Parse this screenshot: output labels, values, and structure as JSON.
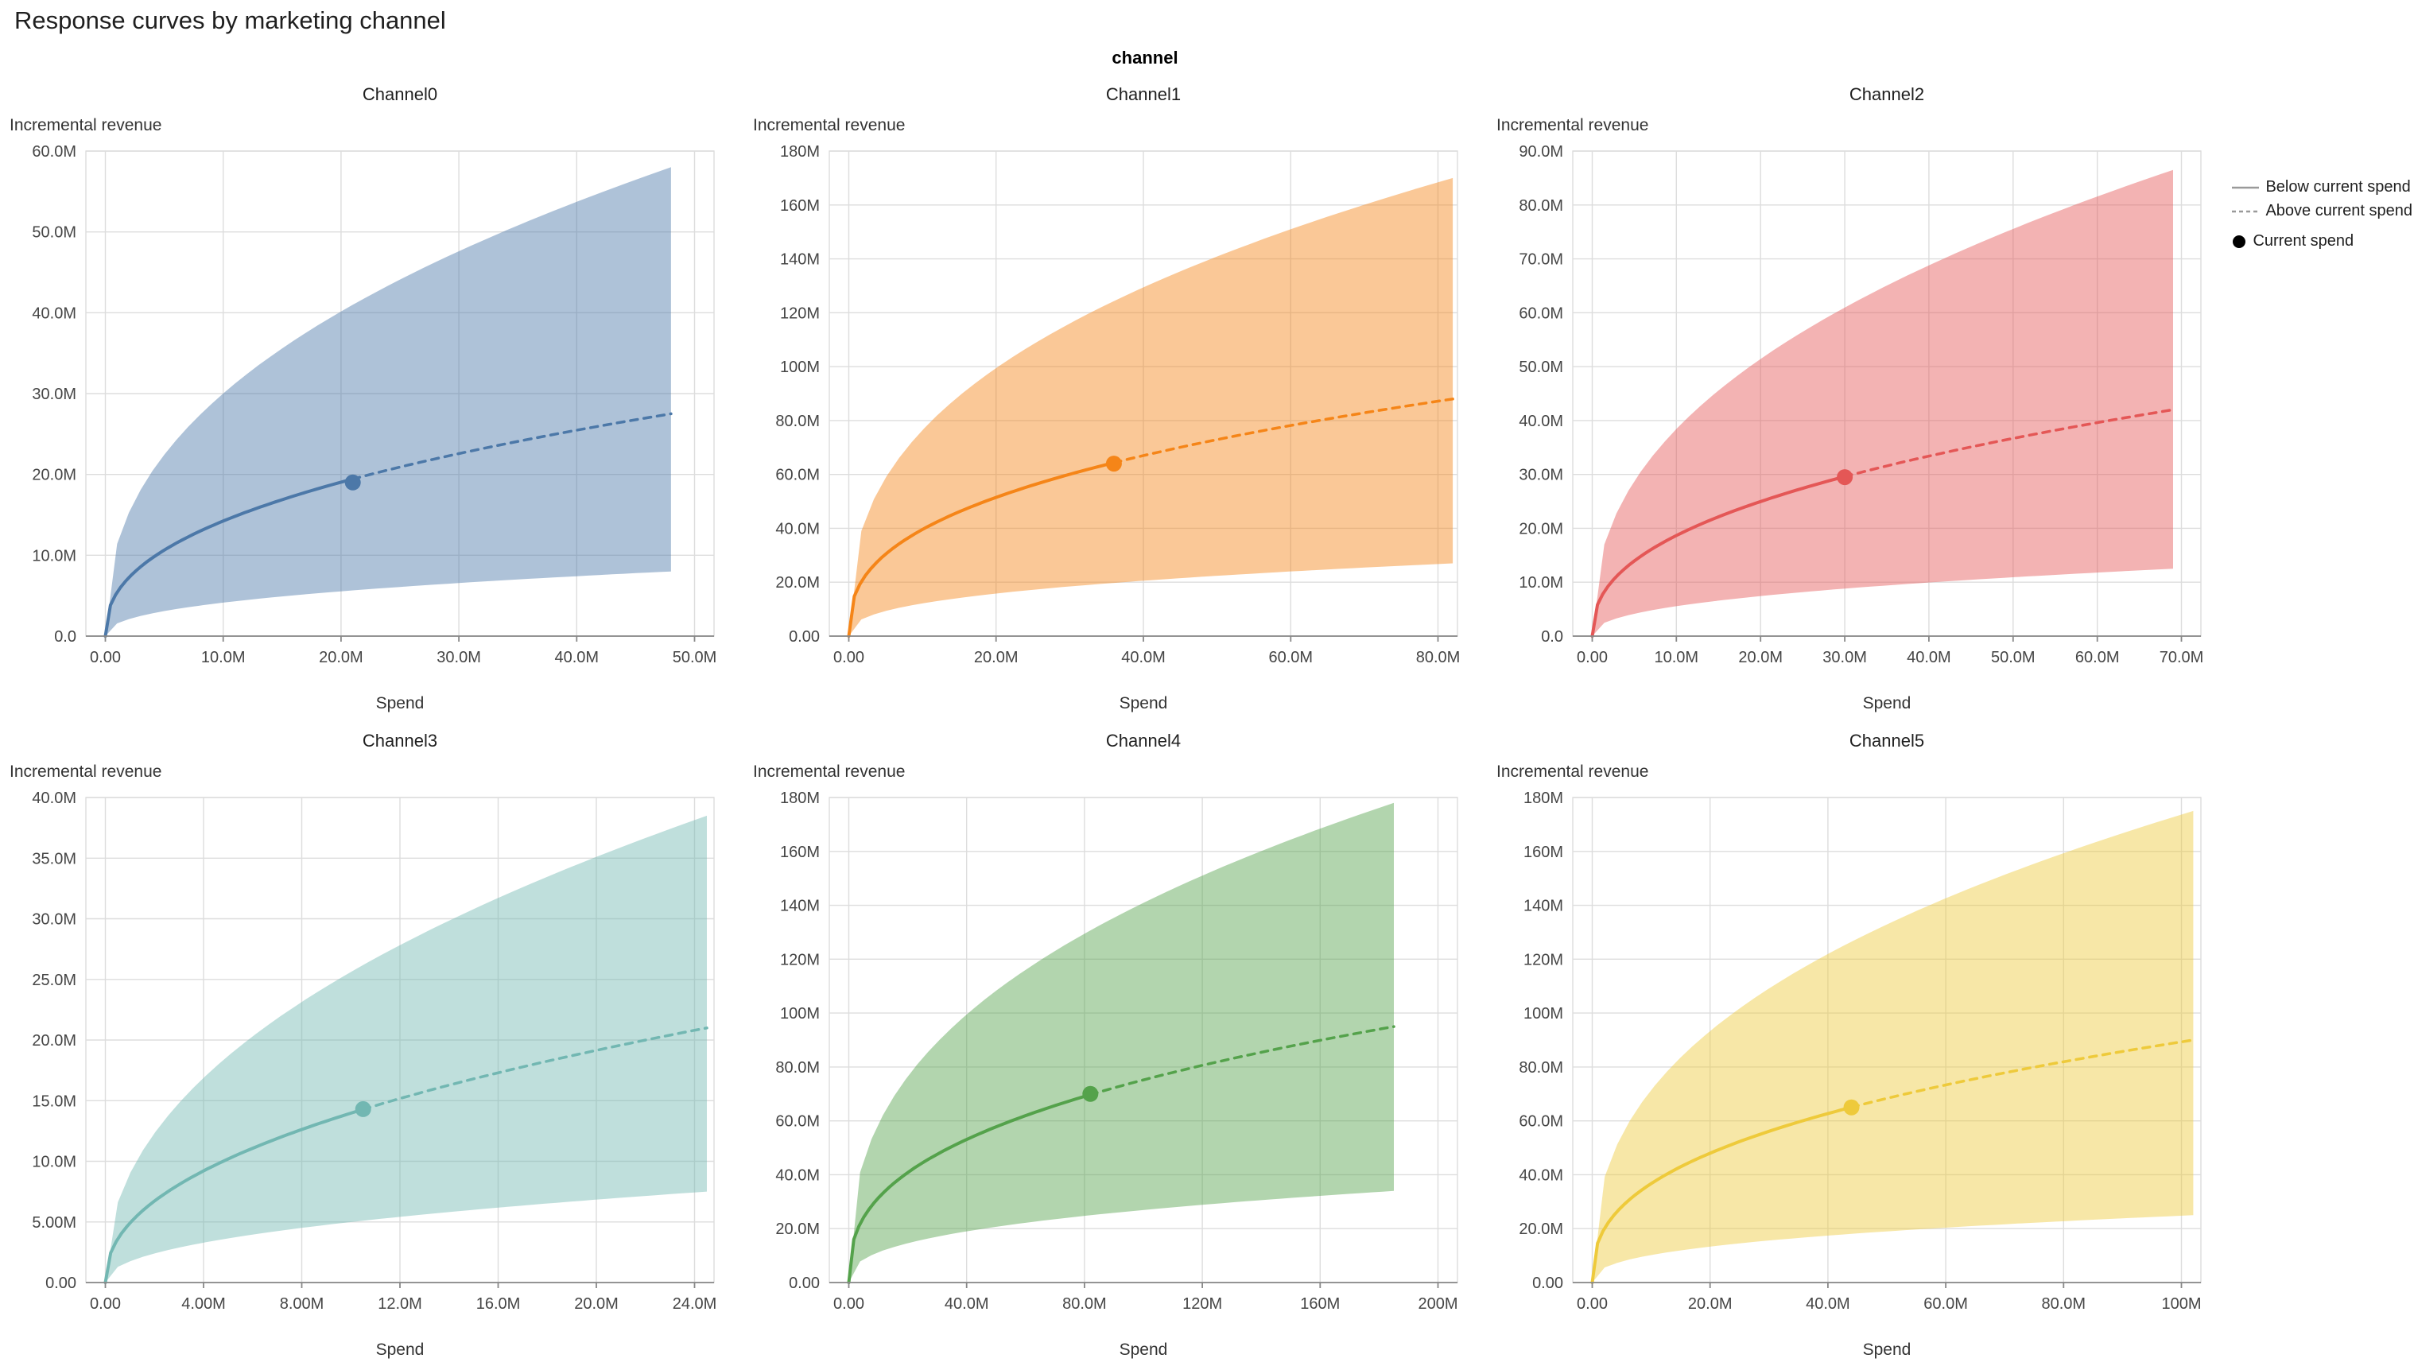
{
  "page": {
    "title": "Response curves by marketing channel",
    "facet_label": "channel"
  },
  "legend": {
    "position": "top-right",
    "items": [
      {
        "symbol": "solid-line",
        "label": "Below current spend"
      },
      {
        "symbol": "dashed-line",
        "label": "Above current spend"
      },
      {
        "symbol": "dot",
        "label": "Current spend"
      }
    ]
  },
  "layout": {
    "grid": true,
    "rows": 2,
    "cols": 3
  },
  "chart_data": [
    {
      "type": "line",
      "title": "Channel0",
      "xlabel": "Spend",
      "ylabel": "Incremental revenue",
      "color": "#4c78a8",
      "value_unit": "M",
      "x_axis_max": 50,
      "ylim": [
        0,
        60
      ],
      "xticks": [
        {
          "v": 0,
          "label": "0.00"
        },
        {
          "v": 10,
          "label": "10.0M"
        },
        {
          "v": 20,
          "label": "20.0M"
        },
        {
          "v": 30,
          "label": "30.0M"
        },
        {
          "v": 40,
          "label": "40.0M"
        },
        {
          "v": 50,
          "label": "50.0M"
        }
      ],
      "yticks": [
        {
          "v": 0,
          "label": "0.0"
        },
        {
          "v": 10,
          "label": "10.0M"
        },
        {
          "v": 20,
          "label": "20.0M"
        },
        {
          "v": 30,
          "label": "30.0M"
        },
        {
          "v": 40,
          "label": "40.0M"
        },
        {
          "v": 50,
          "label": "50.0M"
        },
        {
          "v": 60,
          "label": "60.0M"
        }
      ],
      "curve": {
        "x_end": 48,
        "exponent": 0.42,
        "median_end": 27.5,
        "upper_end": 58,
        "lower_end": 8
      },
      "median_points": {
        "x": [
          0,
          9.6,
          19.2,
          28.8,
          38.4,
          48
        ],
        "y": [
          0,
          14.0,
          18.7,
          22.2,
          25.1,
          27.5
        ]
      },
      "current_spend": {
        "x": 21,
        "y": 19
      }
    },
    {
      "type": "line",
      "title": "Channel1",
      "xlabel": "Spend",
      "ylabel": "Incremental revenue",
      "color": "#f58518",
      "value_unit": "M",
      "x_axis_max": 80,
      "ylim": [
        0,
        180
      ],
      "xticks": [
        {
          "v": 0,
          "label": "0.00"
        },
        {
          "v": 20,
          "label": "20.0M"
        },
        {
          "v": 40,
          "label": "40.0M"
        },
        {
          "v": 60,
          "label": "60.0M"
        },
        {
          "v": 80,
          "label": "80.0M"
        }
      ],
      "yticks": [
        {
          "v": 0,
          "label": "0.00"
        },
        {
          "v": 20,
          "label": "20.0M"
        },
        {
          "v": 40,
          "label": "40.0M"
        },
        {
          "v": 60,
          "label": "60.0M"
        },
        {
          "v": 80,
          "label": "80.0M"
        },
        {
          "v": 100,
          "label": "100M"
        },
        {
          "v": 120,
          "label": "120M"
        },
        {
          "v": 140,
          "label": "140M"
        },
        {
          "v": 160,
          "label": "160M"
        },
        {
          "v": 180,
          "label": "180M"
        }
      ],
      "curve": {
        "x_end": 82,
        "exponent": 0.38,
        "median_end": 88,
        "upper_end": 170,
        "lower_end": 27
      },
      "median_points": {
        "x": [
          0,
          16.4,
          32.8,
          49.2,
          65.6,
          82
        ],
        "y": [
          0,
          47.8,
          62.1,
          72.5,
          80.9,
          88
        ]
      },
      "current_spend": {
        "x": 36,
        "y": 64
      }
    },
    {
      "type": "line",
      "title": "Channel2",
      "xlabel": "Spend",
      "ylabel": "Incremental revenue",
      "color": "#e45756",
      "value_unit": "M",
      "x_axis_max": 70,
      "ylim": [
        0,
        90
      ],
      "xticks": [
        {
          "v": 0,
          "label": "0.00"
        },
        {
          "v": 10,
          "label": "10.0M"
        },
        {
          "v": 20,
          "label": "20.0M"
        },
        {
          "v": 30,
          "label": "30.0M"
        },
        {
          "v": 40,
          "label": "40.0M"
        },
        {
          "v": 50,
          "label": "50.0M"
        },
        {
          "v": 60,
          "label": "60.0M"
        },
        {
          "v": 70,
          "label": "70.0M"
        }
      ],
      "yticks": [
        {
          "v": 0,
          "label": "0.0"
        },
        {
          "v": 10,
          "label": "10.0M"
        },
        {
          "v": 20,
          "label": "20.0M"
        },
        {
          "v": 30,
          "label": "30.0M"
        },
        {
          "v": 40,
          "label": "40.0M"
        },
        {
          "v": 50,
          "label": "50.0M"
        },
        {
          "v": 60,
          "label": "60.0M"
        },
        {
          "v": 70,
          "label": "70.0M"
        },
        {
          "v": 80,
          "label": "80.0M"
        },
        {
          "v": 90,
          "label": "90.0M"
        }
      ],
      "curve": {
        "x_end": 69,
        "exponent": 0.42,
        "median_end": 42,
        "upper_end": 86.5,
        "lower_end": 12.5
      },
      "median_points": {
        "x": [
          0,
          13.8,
          27.6,
          41.4,
          55.2,
          69
        ],
        "y": [
          0,
          21.4,
          28.6,
          33.9,
          38.3,
          42
        ]
      },
      "current_spend": {
        "x": 30,
        "y": 29.5
      }
    },
    {
      "type": "line",
      "title": "Channel3",
      "xlabel": "Spend",
      "ylabel": "Incremental revenue",
      "color": "#72b7b2",
      "value_unit": "M",
      "x_axis_max": 24,
      "ylim": [
        0,
        40
      ],
      "xticks": [
        {
          "v": 0,
          "label": "0.00"
        },
        {
          "v": 4,
          "label": "4.00M"
        },
        {
          "v": 8,
          "label": "8.00M"
        },
        {
          "v": 12,
          "label": "12.0M"
        },
        {
          "v": 16,
          "label": "16.0M"
        },
        {
          "v": 20,
          "label": "20.0M"
        },
        {
          "v": 24,
          "label": "24.0M"
        }
      ],
      "yticks": [
        {
          "v": 0,
          "label": "0.00"
        },
        {
          "v": 5,
          "label": "5.00M"
        },
        {
          "v": 10,
          "label": "10.0M"
        },
        {
          "v": 15,
          "label": "15.0M"
        },
        {
          "v": 20,
          "label": "20.0M"
        },
        {
          "v": 25,
          "label": "25.0M"
        },
        {
          "v": 30,
          "label": "30.0M"
        },
        {
          "v": 35,
          "label": "35.0M"
        },
        {
          "v": 40,
          "label": "40.0M"
        }
      ],
      "curve": {
        "x_end": 24.5,
        "exponent": 0.455,
        "median_end": 21,
        "upper_end": 38.5,
        "lower_end": 7.5
      },
      "median_points": {
        "x": [
          0,
          4.9,
          9.8,
          14.7,
          19.6,
          24.5
        ],
        "y": [
          0,
          10.1,
          13.8,
          16.6,
          19.0,
          21
        ]
      },
      "current_spend": {
        "x": 10.5,
        "y": 14.3
      }
    },
    {
      "type": "line",
      "title": "Channel4",
      "xlabel": "Spend",
      "ylabel": "Incremental revenue",
      "color": "#54a24b",
      "value_unit": "M",
      "x_axis_max": 200,
      "ylim": [
        0,
        180
      ],
      "xticks": [
        {
          "v": 0,
          "label": "0.00"
        },
        {
          "v": 40,
          "label": "40.0M"
        },
        {
          "v": 80,
          "label": "80.0M"
        },
        {
          "v": 120,
          "label": "120M"
        },
        {
          "v": 160,
          "label": "160M"
        },
        {
          "v": 200,
          "label": "200M"
        }
      ],
      "yticks": [
        {
          "v": 0,
          "label": "0.00"
        },
        {
          "v": 20,
          "label": "20.0M"
        },
        {
          "v": 40,
          "label": "40.0M"
        },
        {
          "v": 60,
          "label": "60.0M"
        },
        {
          "v": 80,
          "label": "80.0M"
        },
        {
          "v": 100,
          "label": "100M"
        },
        {
          "v": 120,
          "label": "120M"
        },
        {
          "v": 140,
          "label": "140M"
        },
        {
          "v": 160,
          "label": "160M"
        },
        {
          "v": 180,
          "label": "180M"
        }
      ],
      "curve": {
        "x_end": 185,
        "exponent": 0.38,
        "median_end": 95,
        "upper_end": 178,
        "lower_end": 34
      },
      "median_points": {
        "x": [
          0,
          37,
          74,
          111,
          148,
          185
        ],
        "y": [
          0,
          51.6,
          67.1,
          78.3,
          87.3,
          95
        ]
      },
      "current_spend": {
        "x": 82,
        "y": 70
      }
    },
    {
      "type": "line",
      "title": "Channel5",
      "xlabel": "Spend",
      "ylabel": "Incremental revenue",
      "color": "#eeca3b",
      "value_unit": "M",
      "x_axis_max": 100,
      "ylim": [
        0,
        180
      ],
      "xticks": [
        {
          "v": 0,
          "label": "0.00"
        },
        {
          "v": 20,
          "label": "20.0M"
        },
        {
          "v": 40,
          "label": "40.0M"
        },
        {
          "v": 60,
          "label": "60.0M"
        },
        {
          "v": 80,
          "label": "80.0M"
        },
        {
          "v": 100,
          "label": "100M"
        }
      ],
      "yticks": [
        {
          "v": 0,
          "label": "0.00"
        },
        {
          "v": 20,
          "label": "20.0M"
        },
        {
          "v": 40,
          "label": "40.0M"
        },
        {
          "v": 60,
          "label": "60.0M"
        },
        {
          "v": 80,
          "label": "80.0M"
        },
        {
          "v": 100,
          "label": "100M"
        },
        {
          "v": 120,
          "label": "120M"
        },
        {
          "v": 140,
          "label": "140M"
        },
        {
          "v": 160,
          "label": "160M"
        },
        {
          "v": 180,
          "label": "180M"
        }
      ],
      "curve": {
        "x_end": 102,
        "exponent": 0.386,
        "median_end": 90,
        "upper_end": 175,
        "lower_end": 25
      },
      "median_points": {
        "x": [
          0,
          20.4,
          40.8,
          61.2,
          81.6,
          102
        ],
        "y": [
          0,
          48.3,
          63.2,
          73.9,
          82.6,
          90
        ]
      },
      "current_spend": {
        "x": 44,
        "y": 65
      }
    }
  ]
}
